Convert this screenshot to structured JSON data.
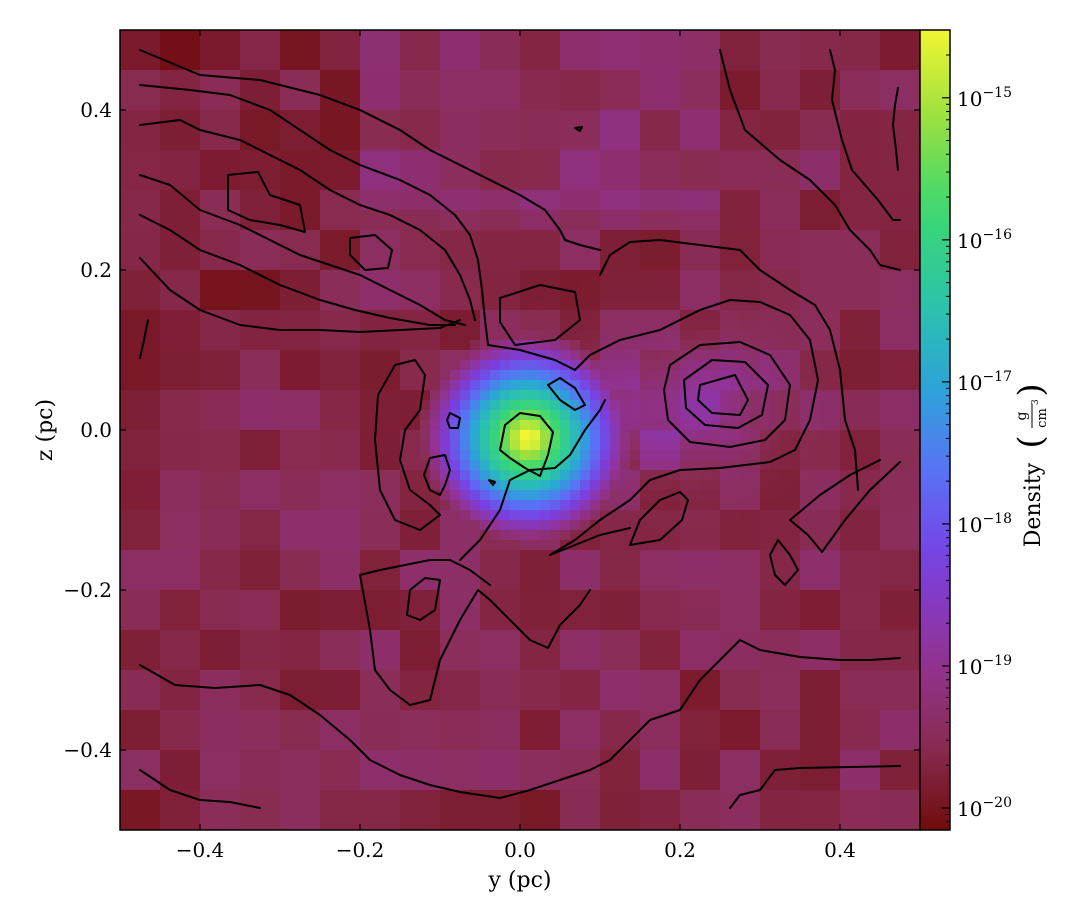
{
  "chart_data": {
    "type": "heatmap",
    "title": "",
    "xlabel": "y  (pc)",
    "ylabel": "z  (pc)",
    "xlim": [
      -0.5,
      0.5
    ],
    "ylim": [
      -0.5,
      0.5
    ],
    "x_ticks": [
      -0.4,
      -0.2,
      0.0,
      0.2,
      0.4
    ],
    "x_tick_labels": [
      "−0.4",
      "−0.2",
      "0.0",
      "0.2",
      "0.4"
    ],
    "y_ticks": [
      0.4,
      0.2,
      0.0,
      -0.2,
      -0.4
    ],
    "y_tick_labels": [
      "0.4",
      "0.2",
      "0.0",
      "−0.2",
      "−0.4"
    ],
    "colorbar": {
      "label_prefix": "Density",
      "unit_numerator": "g",
      "unit_denominator": "cm",
      "unit_power": "3",
      "scale": "log",
      "range": [
        7e-21,
        3e-15
      ],
      "ticks": [
        1e-15,
        1e-16,
        1e-17,
        1e-18,
        1e-19,
        1e-20
      ],
      "tick_labels": [
        {
          "base": "10",
          "exp": "−15"
        },
        {
          "base": "10",
          "exp": "−16"
        },
        {
          "base": "10",
          "exp": "−17"
        },
        {
          "base": "10",
          "exp": "−18"
        },
        {
          "base": "10",
          "exp": "−19"
        },
        {
          "base": "10",
          "exp": "−20"
        }
      ],
      "colormap_stops": [
        "#700c0c",
        "#8a2d55",
        "#923399",
        "#7a3fe0",
        "#5a70f5",
        "#2ba5d8",
        "#2cc6a5",
        "#3bd870",
        "#9ae040",
        "#f2f530"
      ]
    },
    "density_peak": {
      "y_pc": 0.01,
      "z_pc": -0.01,
      "value": 3e-15
    },
    "secondary_clump": {
      "y_pc": 0.25,
      "z_pc": 0.04
    }
  }
}
